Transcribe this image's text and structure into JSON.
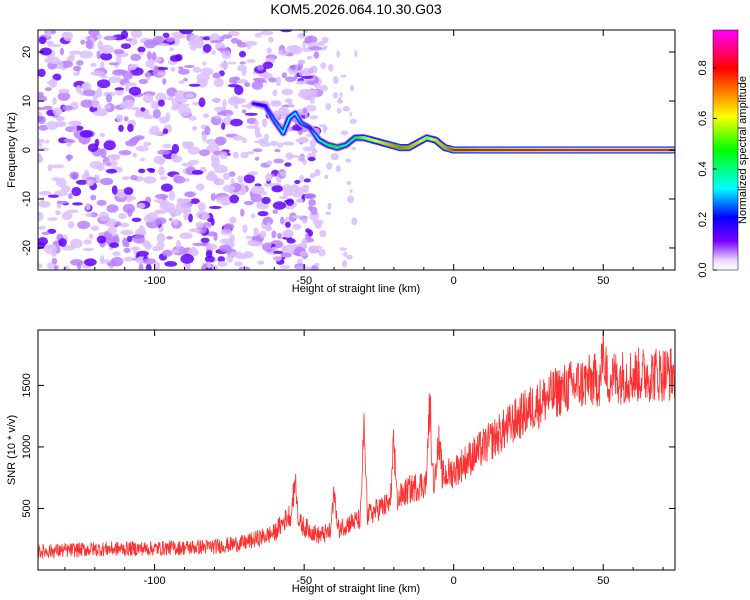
{
  "title": "KOM5.2026.064.10.30.G03",
  "chart_data": [
    {
      "type": "heatmap",
      "xlabel": "Height of straight line (km)",
      "ylabel": "Frequency (Hz)",
      "xlim": [
        -139,
        74
      ],
      "ylim": [
        -24.5,
        24.5
      ],
      "x_ticks": [
        -100,
        -50,
        0,
        50
      ],
      "y_ticks": [
        -20,
        -10,
        0,
        10,
        20
      ],
      "colorbar": {
        "label": "Normalized spectral amplitude",
        "range": [
          0,
          0.95
        ],
        "ticks": [
          0.0,
          0.2,
          0.4,
          0.6,
          0.8
        ],
        "colormap": [
          "#ffffff",
          "#7b00ff",
          "#0000ff",
          "#00ffff",
          "#00ff00",
          "#ffff00",
          "#ff8000",
          "#ff0000",
          "#ff00ff"
        ]
      },
      "ridge": {
        "x": [
          -67,
          -63,
          -60,
          -57,
          -55,
          -53,
          -51,
          -48,
          -45,
          -42,
          -39,
          -36,
          -33,
          -30,
          -27,
          -24,
          -21,
          -18,
          -15,
          -12,
          -9,
          -6,
          -3,
          0,
          10,
          30,
          50,
          74
        ],
        "frequency": [
          9.5,
          9.0,
          6.0,
          3.5,
          6.5,
          7.5,
          5.5,
          4.5,
          2.0,
          1.0,
          0.5,
          1.0,
          2.5,
          2.5,
          2.0,
          1.5,
          1.0,
          0.5,
          0.5,
          1.5,
          2.5,
          2.0,
          0.5,
          0.0,
          0.0,
          0.0,
          0.0,
          0.0
        ],
        "amplitude": [
          0.25,
          0.3,
          0.35,
          0.4,
          0.45,
          0.4,
          0.35,
          0.3,
          0.45,
          0.5,
          0.55,
          0.45,
          0.5,
          0.6,
          0.65,
          0.7,
          0.75,
          0.8,
          0.75,
          0.7,
          0.6,
          0.7,
          0.75,
          0.85,
          0.9,
          0.92,
          0.93,
          0.93
        ]
      },
      "noise_region_x": [
        -139,
        -45
      ]
    },
    {
      "type": "line",
      "xlabel": "Height of straight line (km)",
      "ylabel": "SNR (10 * v/v)",
      "xlim": [
        -139,
        74
      ],
      "ylim": [
        0,
        1950
      ],
      "x_ticks": [
        -100,
        -50,
        0,
        50
      ],
      "y_ticks": [
        500,
        1000,
        1500
      ],
      "color": "#ff3030",
      "trend": {
        "x": [
          -139,
          -120,
          -100,
          -80,
          -70,
          -60,
          -55,
          -50,
          -45,
          -40,
          -35,
          -30,
          -25,
          -20,
          -15,
          -10,
          -5,
          0,
          5,
          10,
          15,
          20,
          25,
          30,
          35,
          40,
          45,
          50,
          55,
          60,
          65,
          74
        ],
        "y": [
          150,
          170,
          175,
          190,
          220,
          300,
          450,
          350,
          280,
          320,
          380,
          420,
          500,
          550,
          650,
          700,
          750,
          800,
          900,
          1000,
          1100,
          1200,
          1300,
          1380,
          1450,
          1500,
          1530,
          1550,
          1570,
          1580,
          1590,
          1600
        ]
      },
      "spikes": [
        {
          "x": -53,
          "y": 850
        },
        {
          "x": -40,
          "y": 750
        },
        {
          "x": -30,
          "y": 1300
        },
        {
          "x": -20,
          "y": 1120
        },
        {
          "x": -8,
          "y": 1510
        },
        {
          "x": -5,
          "y": 1150
        },
        {
          "x": 50,
          "y": 1850
        }
      ]
    }
  ]
}
